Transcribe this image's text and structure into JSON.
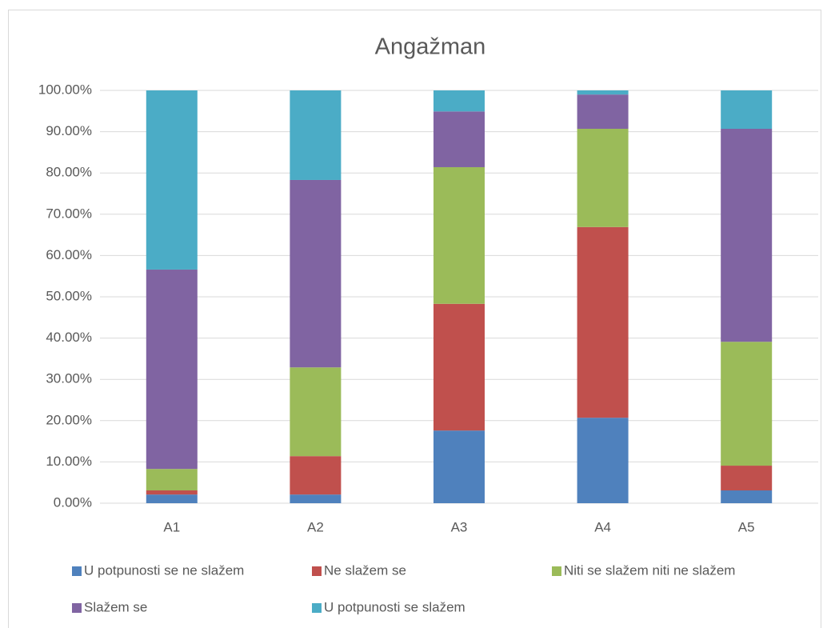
{
  "chart_data": {
    "type": "stacked_bar",
    "title": "Angažman",
    "categories": [
      "A1",
      "A2",
      "A3",
      "A4",
      "A5"
    ],
    "series": [
      {
        "name": "U potpunosti se ne slažem",
        "color": "#4f81bd",
        "values": [
          2.1,
          2.1,
          17.6,
          20.7,
          3.1
        ]
      },
      {
        "name": "Ne slažem se",
        "color": "#c0504d",
        "values": [
          1.0,
          9.3,
          30.7,
          46.2,
          6.0
        ]
      },
      {
        "name": "Niti se slažem niti ne slažem",
        "color": "#9bbb59",
        "values": [
          5.2,
          21.5,
          33.1,
          23.8,
          30.0
        ]
      },
      {
        "name": "Slažem se",
        "color": "#8064a2",
        "values": [
          48.3,
          45.4,
          13.5,
          8.3,
          51.6
        ]
      },
      {
        "name": "U potpunosti se slažem",
        "color": "#4bacc6",
        "values": [
          43.4,
          21.7,
          5.1,
          1.0,
          9.3
        ]
      }
    ],
    "ylim": [
      0,
      100
    ],
    "yticks": [
      {
        "value": 0,
        "label": "0.00%"
      },
      {
        "value": 10,
        "label": "10.00%"
      },
      {
        "value": 20,
        "label": "20.00%"
      },
      {
        "value": 30,
        "label": "30.00%"
      },
      {
        "value": 40,
        "label": "40.00%"
      },
      {
        "value": 50,
        "label": "50.00%"
      },
      {
        "value": 60,
        "label": "60.00%"
      },
      {
        "value": 70,
        "label": "70.00%"
      },
      {
        "value": 80,
        "label": "80.00%"
      },
      {
        "value": 90,
        "label": "90.00%"
      },
      {
        "value": 100,
        "label": "100.00%"
      }
    ],
    "grid": true,
    "legend": "bottom"
  }
}
